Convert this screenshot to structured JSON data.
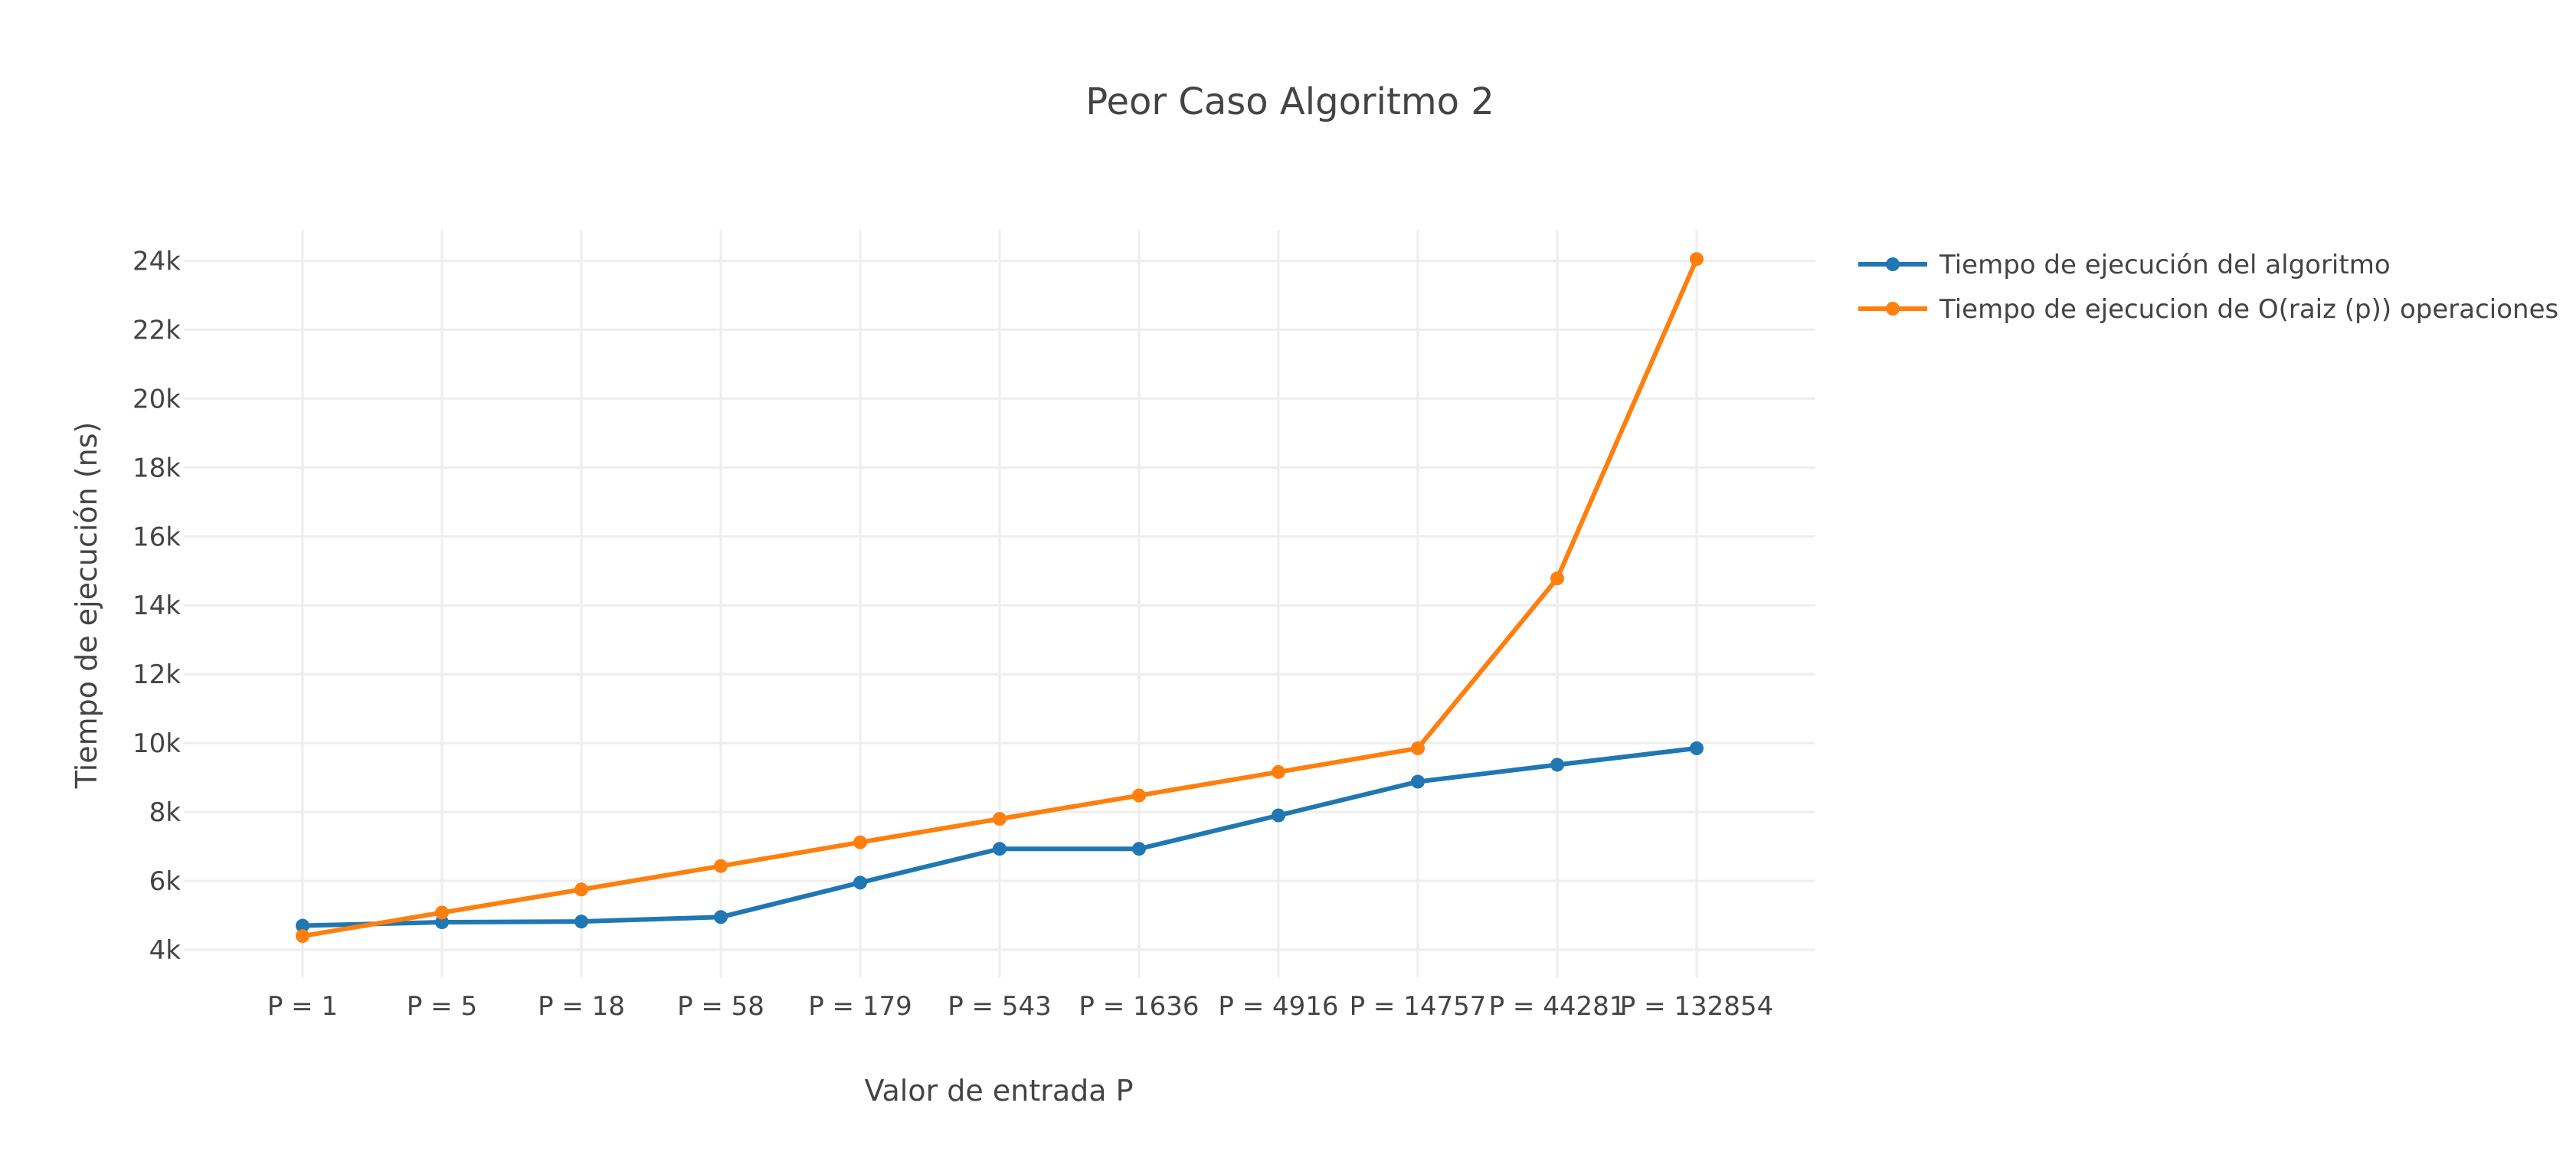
{
  "chart_data": {
    "type": "line",
    "title": "Peor Caso Algoritmo 2",
    "xlabel": "Valor de entrada P",
    "ylabel": "Tiempo de ejecución (ns)",
    "categories": [
      "P = 1",
      "P = 5",
      "P = 18",
      "P = 58",
      "P = 179",
      "P = 543",
      "P = 1636",
      "P = 4916",
      "P = 14757",
      "P = 44281",
      "P = 132854"
    ],
    "ylim": [
      3200,
      24900
    ],
    "yticks": [
      4000,
      6000,
      8000,
      10000,
      12000,
      14000,
      16000,
      18000,
      20000,
      22000,
      24000
    ],
    "ytick_labels": [
      "4k",
      "6k",
      "8k",
      "10k",
      "12k",
      "14k",
      "16k",
      "18k",
      "20k",
      "22k",
      "24k"
    ],
    "grid": true,
    "legend_position": "top-right",
    "series": [
      {
        "name": "Tiempo de ejecución del algoritmo",
        "color": "#1f77b4",
        "values": [
          4700,
          4800,
          4820,
          4950,
          5950,
          6930,
          6930,
          7900,
          8880,
          9370,
          9850
        ]
      },
      {
        "name": "Tiempo de ejecucion de O(raiz (p)) operaciones",
        "color": "#ff7f0e",
        "values": [
          4400,
          5080,
          5750,
          6430,
          7120,
          7800,
          8480,
          9160,
          9850,
          14780,
          24050
        ]
      }
    ]
  }
}
